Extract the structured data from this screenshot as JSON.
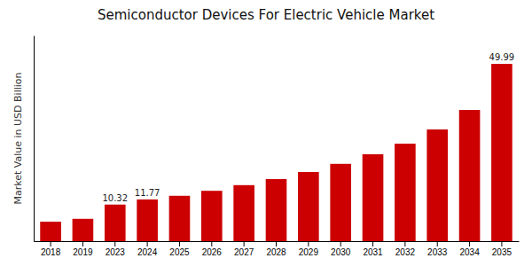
{
  "chart_data": {
    "type": "bar",
    "title": "Semiconductor Devices For Electric Vehicle Market",
    "ylabel": "Market Value in USD Billion",
    "categories": [
      "2018",
      "2019",
      "2023",
      "2024",
      "2025",
      "2026",
      "2027",
      "2028",
      "2029",
      "2030",
      "2031",
      "2032",
      "2033",
      "2034",
      "2035"
    ],
    "values": [
      5.5,
      6.3,
      10.32,
      11.77,
      12.8,
      14.2,
      15.8,
      17.5,
      19.5,
      21.8,
      24.5,
      27.5,
      31.5,
      37.0,
      49.99
    ],
    "color": "#cc0000",
    "ylim": [
      0,
      58
    ],
    "yticks": [],
    "tick_labels": "x",
    "grid": false,
    "annotations": [
      {
        "category": "2023",
        "text": "10.32"
      },
      {
        "category": "2024",
        "text": "11.77"
      },
      {
        "category": "2035",
        "text": "49.99"
      }
    ]
  }
}
